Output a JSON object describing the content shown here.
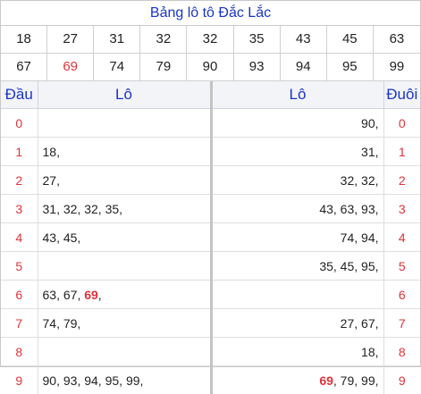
{
  "title": "Bảng lô tô Đắc Lắc",
  "numbers_row1": [
    "18",
    "27",
    "31",
    "32",
    "32",
    "35",
    "43",
    "45",
    "63"
  ],
  "numbers_row2": [
    "67",
    "69",
    "74",
    "79",
    "90",
    "93",
    "94",
    "95",
    "99"
  ],
  "highlight_number": "69",
  "colors": {
    "title": "#1a35c7",
    "highlight": "#e0333b",
    "index": "#e0333b"
  },
  "headers": {
    "dau": "Đầu",
    "lo_left": "Lô",
    "lo_right": "Lô",
    "duoi": "Đuôi"
  },
  "rows": [
    {
      "dau": "0",
      "left": "",
      "right": "90,",
      "duoi": "0"
    },
    {
      "dau": "1",
      "left": "18,",
      "right": "31,",
      "duoi": "1"
    },
    {
      "dau": "2",
      "left": "27,",
      "right": "32, 32,",
      "duoi": "2"
    },
    {
      "dau": "3",
      "left": "31, 32, 32, 35,",
      "right": "43, 63, 93,",
      "duoi": "3"
    },
    {
      "dau": "4",
      "left": "43, 45,",
      "right": "74, 94,",
      "duoi": "4"
    },
    {
      "dau": "5",
      "left": "",
      "right": "35, 45, 95,",
      "duoi": "5"
    },
    {
      "dau": "6",
      "left": "63, 67, 69,",
      "right": "",
      "duoi": "6"
    },
    {
      "dau": "7",
      "left": "74, 79,",
      "right": "27, 67,",
      "duoi": "7"
    },
    {
      "dau": "8",
      "left": "",
      "right": "18,",
      "duoi": "8"
    },
    {
      "dau": "9",
      "left": "90, 93, 94, 95, 99,",
      "right": "69, 79, 99,",
      "duoi": "9"
    }
  ]
}
